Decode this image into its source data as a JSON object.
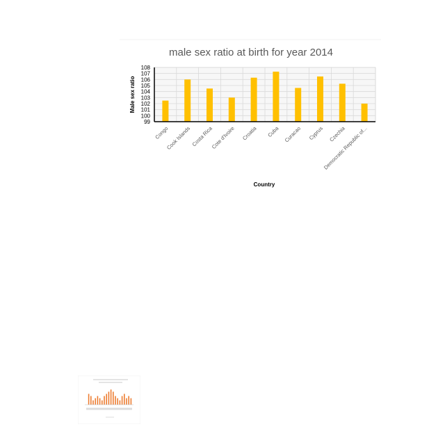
{
  "chart_data": [
    {
      "type": "bar",
      "title": "male sex ratio at birth for year 2014",
      "xlabel": "Country",
      "ylabel": "Male sex ratio",
      "ylim": [
        99,
        108
      ],
      "yticks": [
        99,
        100,
        101,
        102,
        103,
        104,
        105,
        106,
        107,
        108
      ],
      "categories": [
        "Congo",
        "Cook Islands",
        "Costa Rica",
        "Cote d'Ivoire",
        "Croatia",
        "Cuba",
        "Curacao",
        "Cyprus",
        "Czechia",
        "Democratic Republic of..."
      ],
      "values": [
        102.5,
        106.0,
        104.5,
        103.0,
        106.3,
        107.3,
        104.6,
        106.5,
        105.3,
        102.0
      ],
      "grid": true,
      "colors": {
        "bar": "#ffc000",
        "title": "#595959",
        "axis": "#000000",
        "grid": "#d9d9d9",
        "tick": "#595959"
      }
    },
    {
      "type": "bar",
      "values": [
        104,
        103,
        101,
        102,
        103,
        102,
        101,
        103,
        104,
        105,
        106,
        105,
        103,
        102,
        101,
        103,
        104,
        102,
        103,
        102
      ],
      "ylim": [
        99,
        108
      ],
      "colors": {
        "bar": "#ed7d31"
      }
    }
  ]
}
